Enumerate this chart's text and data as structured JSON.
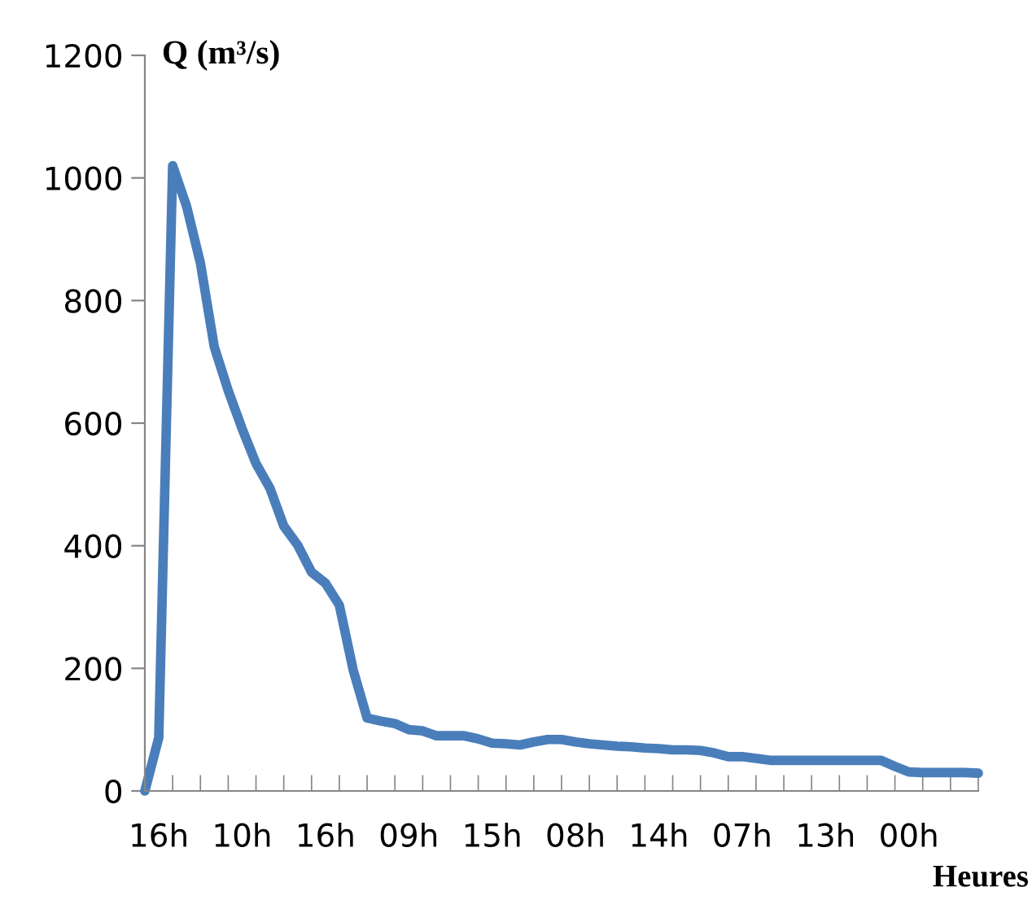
{
  "chart_data": {
    "type": "line",
    "ylabel": "Q (m³/s)",
    "xlabel": "Heures",
    "categories": [
      null,
      "16h",
      null,
      null,
      null,
      null,
      null,
      "10h",
      null,
      null,
      null,
      null,
      null,
      "16h",
      null,
      null,
      null,
      null,
      null,
      "09h",
      null,
      null,
      null,
      null,
      null,
      "15h",
      null,
      null,
      null,
      null,
      null,
      "08h",
      null,
      null,
      null,
      null,
      null,
      "14h",
      null,
      null,
      null,
      null,
      null,
      "07h",
      null,
      null,
      null,
      null,
      null,
      "13h",
      null,
      null,
      null,
      null,
      null,
      "00h",
      null,
      null,
      null,
      null,
      null
    ],
    "series": [
      {
        "color": "#4a7ebb",
        "values": [
          0,
          87,
          1020,
          954,
          861,
          724,
          653,
          591,
          534,
          494,
          432,
          401,
          357,
          339,
          303,
          197,
          119,
          114,
          110,
          100,
          98,
          90,
          90,
          90,
          85,
          78,
          77,
          75,
          80,
          84,
          84,
          80,
          77,
          75,
          73,
          72,
          70,
          69,
          67,
          67,
          66,
          62,
          56,
          56,
          53,
          50,
          50,
          50,
          50,
          50,
          50,
          50,
          50,
          50,
          40,
          31,
          30,
          30,
          30,
          30,
          29
        ]
      }
    ],
    "ylim": [
      0,
      1200
    ],
    "yticks": [
      0,
      200,
      400,
      600,
      800,
      1000,
      1200
    ],
    "grid": false,
    "legend": false,
    "marker": "none",
    "line_style": "solid"
  }
}
